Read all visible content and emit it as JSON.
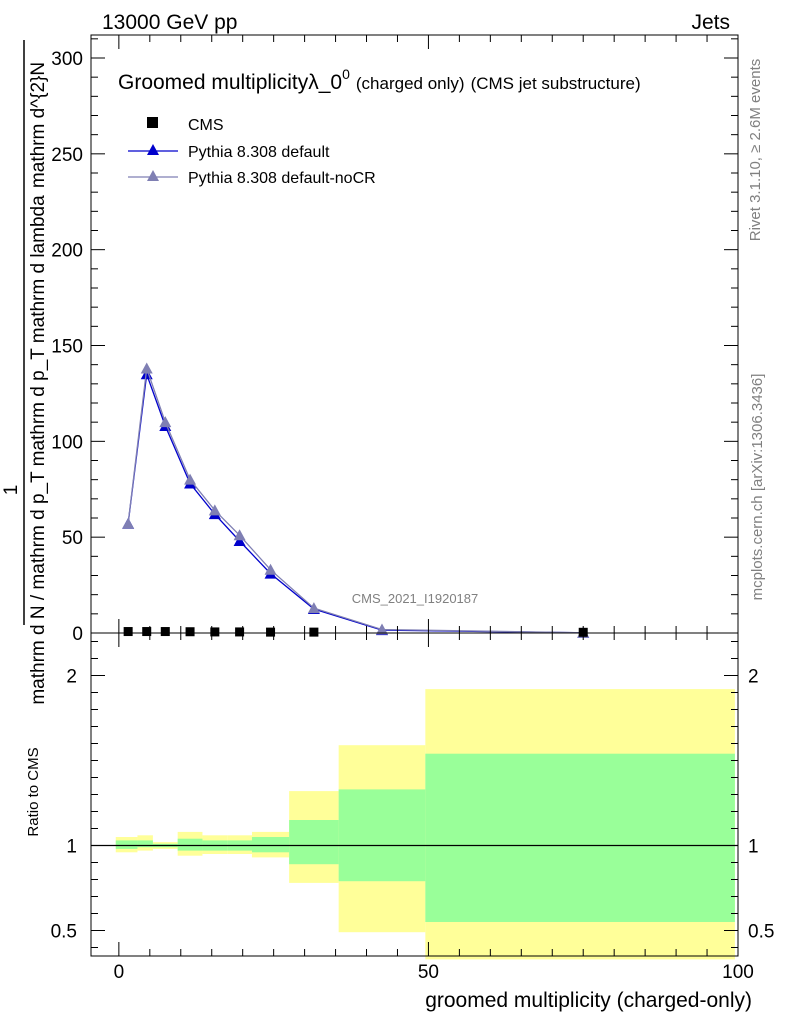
{
  "header": {
    "left": "13000 GeV pp",
    "right": "Jets"
  },
  "side_labels": {
    "rivet": "Rivet 3.1.10, ≥ 2.6M events",
    "mcplots": "mcplots.cern.ch [arXiv:1306.3436]"
  },
  "chart_data": {
    "type": "line",
    "title_main": "Groomed multiplicityλ_0",
    "title_sup": "0",
    "title_small": "(charged only)",
    "title_tail": "(CMS jet substructure)",
    "analysis_label": "CMS_2021_I1920187",
    "xlabel": "groomed multiplicity (charged-only)",
    "ylabel_main": "mathrm d N / mathrm d p_T mathrm d lambda",
    "ylabel_main_num": "1",
    "ylabel_main_den": "mathrm d N / mathrm d p_T mathrm d p_T mathrm d lambda",
    "ylabel_numerator": "mathrm d^{2}N",
    "ylabel_ratio": "Ratio to CMS",
    "xlim": [
      -4.5,
      100
    ],
    "ylim_main": [
      0,
      312
    ],
    "ylim_ratio": [
      0.35,
      2.25
    ],
    "x_ticks": [
      "0",
      "50",
      "100"
    ],
    "y_ticks_main": [
      "0",
      "50",
      "100",
      "150",
      "200",
      "250",
      "300"
    ],
    "y_ticks_ratio": [
      "0.5",
      "1",
      "2"
    ],
    "legend": [
      {
        "name": "CMS",
        "marker": "square",
        "color": "#000000"
      },
      {
        "name": "Pythia 8.308 default",
        "marker": "triangle",
        "color": "#0000cc"
      },
      {
        "name": "Pythia 8.308 default-noCR",
        "marker": "triangle",
        "color": "#7f7fb3"
      }
    ],
    "cms": {
      "x": [
        1.5,
        4.5,
        7.5,
        11.5,
        15.5,
        19.5,
        24.5,
        31.5,
        75.0
      ],
      "y": [
        0.5,
        0.5,
        0.5,
        0.4,
        0.3,
        0.3,
        0.2,
        0.2,
        0.1
      ]
    },
    "pythia_default": {
      "x": [
        1.5,
        4.5,
        7.5,
        11.5,
        15.5,
        19.5,
        24.5,
        31.5,
        42.5,
        75.0
      ],
      "y": [
        57,
        135,
        108,
        78,
        62,
        48,
        31,
        12.5,
        1.5,
        0.1
      ]
    },
    "pythia_nocr": {
      "x": [
        1.5,
        4.5,
        7.5,
        11.5,
        15.5,
        19.5,
        24.5,
        31.5,
        42.5,
        75.0
      ],
      "y": [
        57,
        138,
        110,
        80,
        64,
        51,
        33,
        13,
        1.8,
        0.1
      ]
    },
    "ratio_bands": [
      {
        "x0": -0.5,
        "x1": 3.0,
        "y_lo": 0.96,
        "y_hi": 1.05,
        "g_lo": 0.98,
        "g_hi": 1.03
      },
      {
        "x0": 3.0,
        "x1": 5.5,
        "y_lo": 0.97,
        "y_hi": 1.06,
        "g_lo": 0.99,
        "g_hi": 1.03
      },
      {
        "x0": 5.5,
        "x1": 9.5,
        "y_lo": 0.98,
        "y_hi": 1.02,
        "g_lo": 0.99,
        "g_hi": 1.01
      },
      {
        "x0": 9.5,
        "x1": 13.5,
        "y_lo": 0.94,
        "y_hi": 1.08,
        "g_lo": 0.97,
        "g_hi": 1.04
      },
      {
        "x0": 13.5,
        "x1": 17.5,
        "y_lo": 0.95,
        "y_hi": 1.06,
        "g_lo": 0.97,
        "g_hi": 1.03
      },
      {
        "x0": 17.5,
        "x1": 21.5,
        "y_lo": 0.95,
        "y_hi": 1.06,
        "g_lo": 0.97,
        "g_hi": 1.03
      },
      {
        "x0": 21.5,
        "x1": 27.5,
        "y_lo": 0.93,
        "y_hi": 1.08,
        "g_lo": 0.96,
        "g_hi": 1.05
      },
      {
        "x0": 27.5,
        "x1": 35.5,
        "y_lo": 0.78,
        "y_hi": 1.32,
        "g_lo": 0.89,
        "g_hi": 1.15
      },
      {
        "x0": 35.5,
        "x1": 49.5,
        "y_lo": 0.49,
        "y_hi": 1.59,
        "g_lo": 0.79,
        "g_hi": 1.33
      },
      {
        "x0": 49.5,
        "x1": 99.5,
        "y_lo": 0.33,
        "y_hi": 1.92,
        "g_lo": 0.55,
        "g_hi": 1.54
      }
    ],
    "colors": {
      "band_yellow": "#ffff99",
      "band_green": "#99ff99",
      "pythia_default": "#0000cc",
      "pythia_nocr": "#7f7fb3"
    }
  }
}
